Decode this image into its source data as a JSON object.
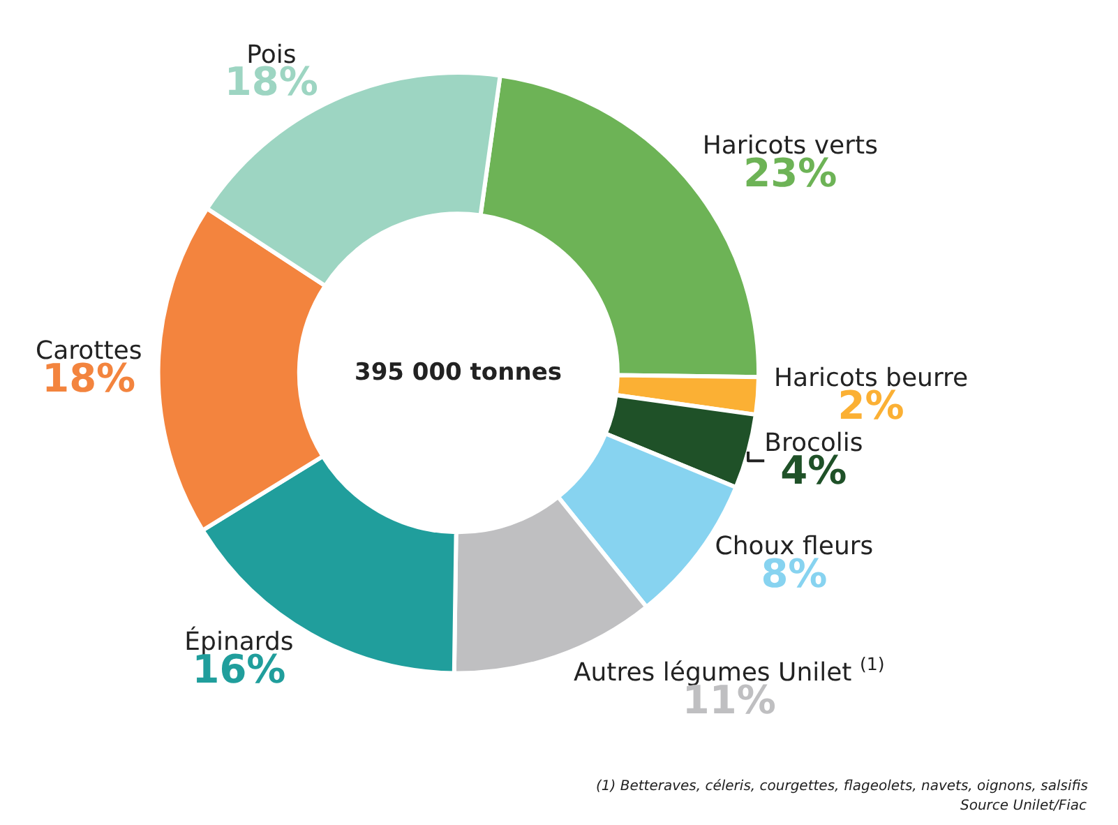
{
  "chart_data": {
    "type": "donut",
    "categories": [
      "Haricots verts",
      "Haricots beurre",
      "Brocolis",
      "Choux fleurs",
      "Autres légumes Unilet $^{(1)}$",
      "Épinards",
      "Carottes",
      "Pois"
    ],
    "values": [
      23,
      2,
      4,
      8,
      11,
      16,
      18,
      18
    ],
    "value_labels": [
      "23%",
      "2%",
      "4%",
      "8%",
      "11%",
      "16%",
      "18%",
      "18%"
    ],
    "colors": [
      "#6db356",
      "#fbb034",
      "#1f5128",
      "#87d3f0",
      "#bfbfc1",
      "#209e9c",
      "#f3843e",
      "#9dd5c2"
    ],
    "legend": false,
    "annotations": [
      "395 000 tonnes",
      "(1) Betteraves, céleris, courgettes, flageolets, navets, oignons, salsifis",
      "Source Unilet/Fiac"
    ]
  }
}
